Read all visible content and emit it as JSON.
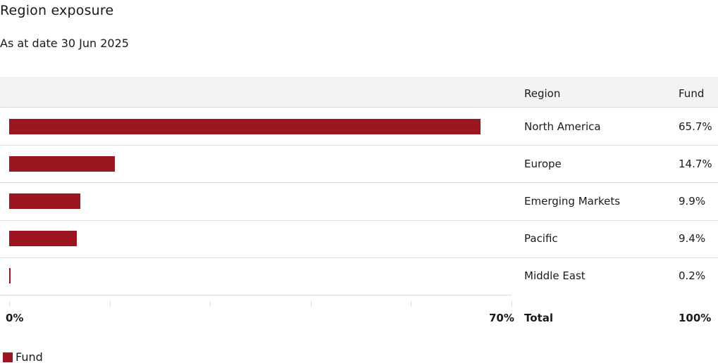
{
  "title": "Region exposure",
  "subtitle": "As at date 30 Jun 2025",
  "colors": {
    "bar": "#9b1620"
  },
  "table": {
    "col_region": "Region",
    "col_fund": "Fund",
    "total_label": "Total",
    "total_value": "100%"
  },
  "legend": {
    "label": "Fund"
  },
  "chart_data": {
    "type": "bar",
    "orientation": "horizontal",
    "categories": [
      "North America",
      "Europe",
      "Emerging Markets",
      "Pacific",
      "Middle East"
    ],
    "series": [
      {
        "name": "Fund",
        "values": [
          65.7,
          14.7,
          9.9,
          9.4,
          0.2
        ],
        "labels": [
          "65.7%",
          "14.7%",
          "9.9%",
          "9.4%",
          "0.2%"
        ]
      }
    ],
    "xlim": [
      0,
      70
    ],
    "x_tick_labels": [
      "0%",
      "70%"
    ],
    "legend_position": "bottom-left"
  }
}
